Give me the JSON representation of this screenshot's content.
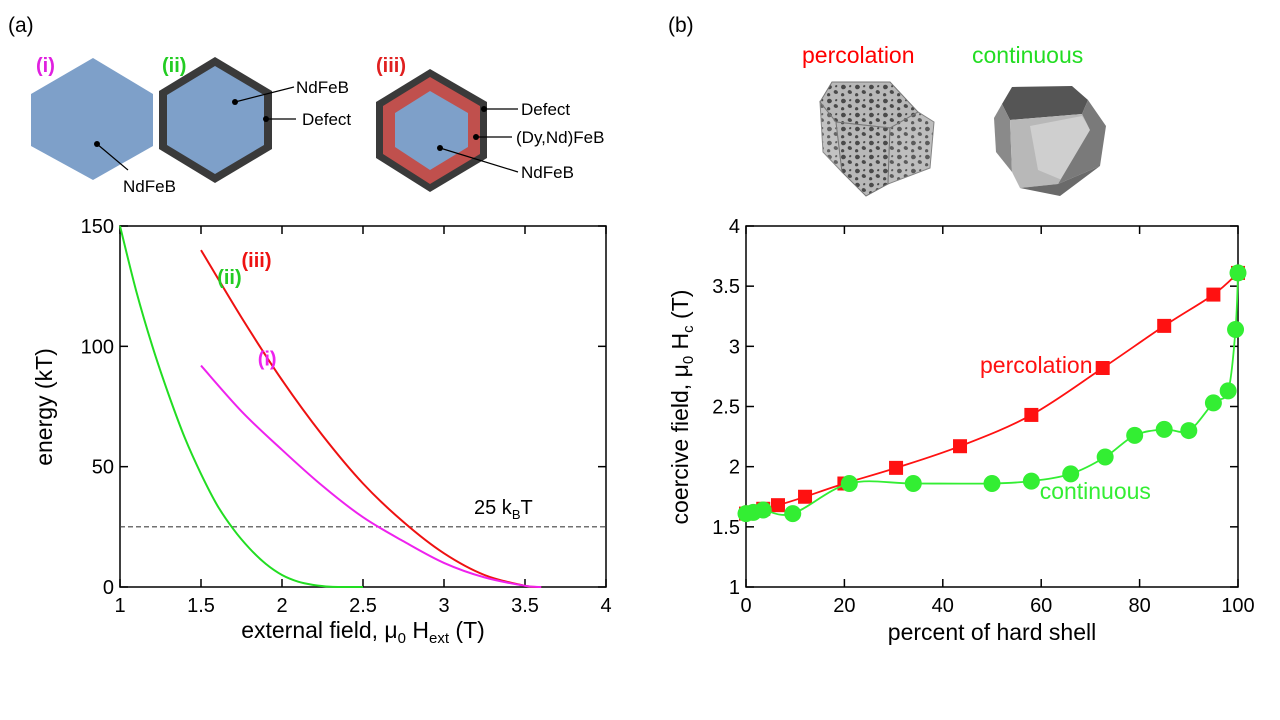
{
  "panels": {
    "a": {
      "label": "(a)",
      "diagrams": [
        {
          "tag": "(i)",
          "tag_color": "#e020e0",
          "core": "NdFeB",
          "labels": [
            "NdFeB"
          ]
        },
        {
          "tag": "(ii)",
          "tag_color": "#22cc22",
          "labels": [
            "NdFeB",
            "Defect"
          ]
        },
        {
          "tag": "(iii)",
          "tag_color": "#e02020",
          "labels": [
            "Defect",
            "(Dy,Nd)FeB",
            "NdFeB"
          ]
        }
      ]
    },
    "b": {
      "label": "(b)",
      "renders": [
        {
          "title": "percolation",
          "color": "#ff0000"
        },
        {
          "title": "continuous",
          "color": "#22dd22"
        }
      ]
    }
  },
  "colors": {
    "hex_fill": "#7ea0c9",
    "defect": "#3a3a3a",
    "shell": "#c0504d",
    "curve_i": "#ee22ee",
    "curve_ii": "#22dd22",
    "curve_iii": "#ee1111",
    "perc": "#ff1111",
    "cont": "#33ee33"
  },
  "chart_data": [
    {
      "type": "line",
      "title": "",
      "xlabel": "external field, μ0 Hext (T)",
      "xlabel_parts": {
        "main": "external field, μ",
        "sub1": "0",
        "mid": " H",
        "sub2": "ext",
        "end": " (T)"
      },
      "ylabel": "energy (kT)",
      "xlim": [
        1,
        4
      ],
      "ylim": [
        0,
        150
      ],
      "xticks": [
        1,
        1.5,
        2,
        2.5,
        3,
        3.5,
        4
      ],
      "xtick_labels": [
        "1",
        "1.5",
        "2",
        "2.5",
        "3",
        "3.5",
        "4"
      ],
      "yticks": [
        0,
        50,
        100,
        150
      ],
      "ytick_labels": [
        "0",
        "50",
        "100",
        "150"
      ],
      "threshold": {
        "value": 25,
        "label_main": "25 k",
        "label_sub": "B",
        "label_end": "T",
        "style": "dashed"
      },
      "series": [
        {
          "name": "(ii)",
          "color": "#22dd22",
          "x": [
            1.0,
            1.1,
            1.2,
            1.3,
            1.4,
            1.5,
            1.6,
            1.7,
            1.8,
            1.9,
            2.0,
            2.1,
            2.2,
            2.3,
            2.4,
            2.5
          ],
          "y": [
            150,
            123,
            100,
            80,
            62,
            47,
            34,
            24,
            16,
            9.6,
            5.0,
            2.2,
            0.8,
            0.1,
            0,
            0
          ]
        },
        {
          "name": "(iii)",
          "color": "#ee1111",
          "x": [
            1.5,
            1.75,
            2.0,
            2.25,
            2.5,
            2.75,
            3.0,
            3.25,
            3.5,
            3.6
          ],
          "y": [
            140,
            112,
            86,
            63,
            43,
            27,
            14,
            5,
            0.5,
            0
          ]
        },
        {
          "name": "(i)",
          "color": "#ee22ee",
          "x": [
            1.5,
            1.75,
            2.0,
            2.25,
            2.5,
            2.75,
            3.0,
            3.25,
            3.5,
            3.6
          ],
          "y": [
            92,
            73,
            57,
            42,
            29,
            19,
            10,
            4,
            0.5,
            0
          ]
        }
      ],
      "series_labels": [
        {
          "text": "(ii)",
          "color": "#22cc22",
          "x": 1.6,
          "y": 126
        },
        {
          "text": "(iii)",
          "color": "#ee1111",
          "x": 1.75,
          "y": 133
        },
        {
          "text": "(i)",
          "color": "#ee22ee",
          "x": 1.85,
          "y": 92
        }
      ]
    },
    {
      "type": "line",
      "title": "",
      "xlabel": "percent of hard shell",
      "ylabel": "coercive field, μ0 Hc (T)",
      "ylabel_parts": {
        "main": "coercive field, μ",
        "sub1": "0",
        "mid": " H",
        "sub2": "c",
        "end": " (T)"
      },
      "xlim": [
        0,
        100
      ],
      "ylim": [
        1,
        4
      ],
      "xticks": [
        0,
        20,
        40,
        60,
        80,
        100
      ],
      "xtick_labels": [
        "0",
        "20",
        "40",
        "60",
        "80",
        "100"
      ],
      "yticks": [
        1,
        1.5,
        2,
        2.5,
        3,
        3.5,
        4
      ],
      "ytick_labels": [
        "1",
        "1.5",
        "2",
        "2.5",
        "3",
        "3.5",
        "4"
      ],
      "series": [
        {
          "name": "percolation",
          "color": "#ff1111",
          "marker": "square",
          "x": [
            0,
            1,
            3.5,
            6.5,
            12,
            20,
            30.5,
            43.5,
            58,
            72.5,
            85,
            95,
            100
          ],
          "y": [
            1.61,
            1.62,
            1.65,
            1.68,
            1.75,
            1.86,
            1.99,
            2.17,
            2.43,
            2.82,
            3.17,
            3.43,
            3.61
          ]
        },
        {
          "name": "continuous",
          "color": "#33ee33",
          "marker": "circle",
          "x": [
            0,
            1.5,
            3.5,
            9.5,
            21,
            34,
            50,
            58,
            66,
            73,
            79,
            85,
            90,
            95,
            98,
            99.5,
            100
          ],
          "y": [
            1.61,
            1.62,
            1.64,
            1.61,
            1.86,
            1.86,
            1.86,
            1.88,
            1.94,
            2.08,
            2.26,
            2.31,
            2.3,
            2.53,
            2.63,
            3.14,
            3.61
          ]
        }
      ],
      "series_labels": [
        {
          "text": "percolation",
          "color": "#ff1111",
          "x": 59,
          "y": 2.78
        },
        {
          "text": "continuous",
          "color": "#33ee33",
          "x": 71,
          "y": 1.73
        }
      ]
    }
  ]
}
